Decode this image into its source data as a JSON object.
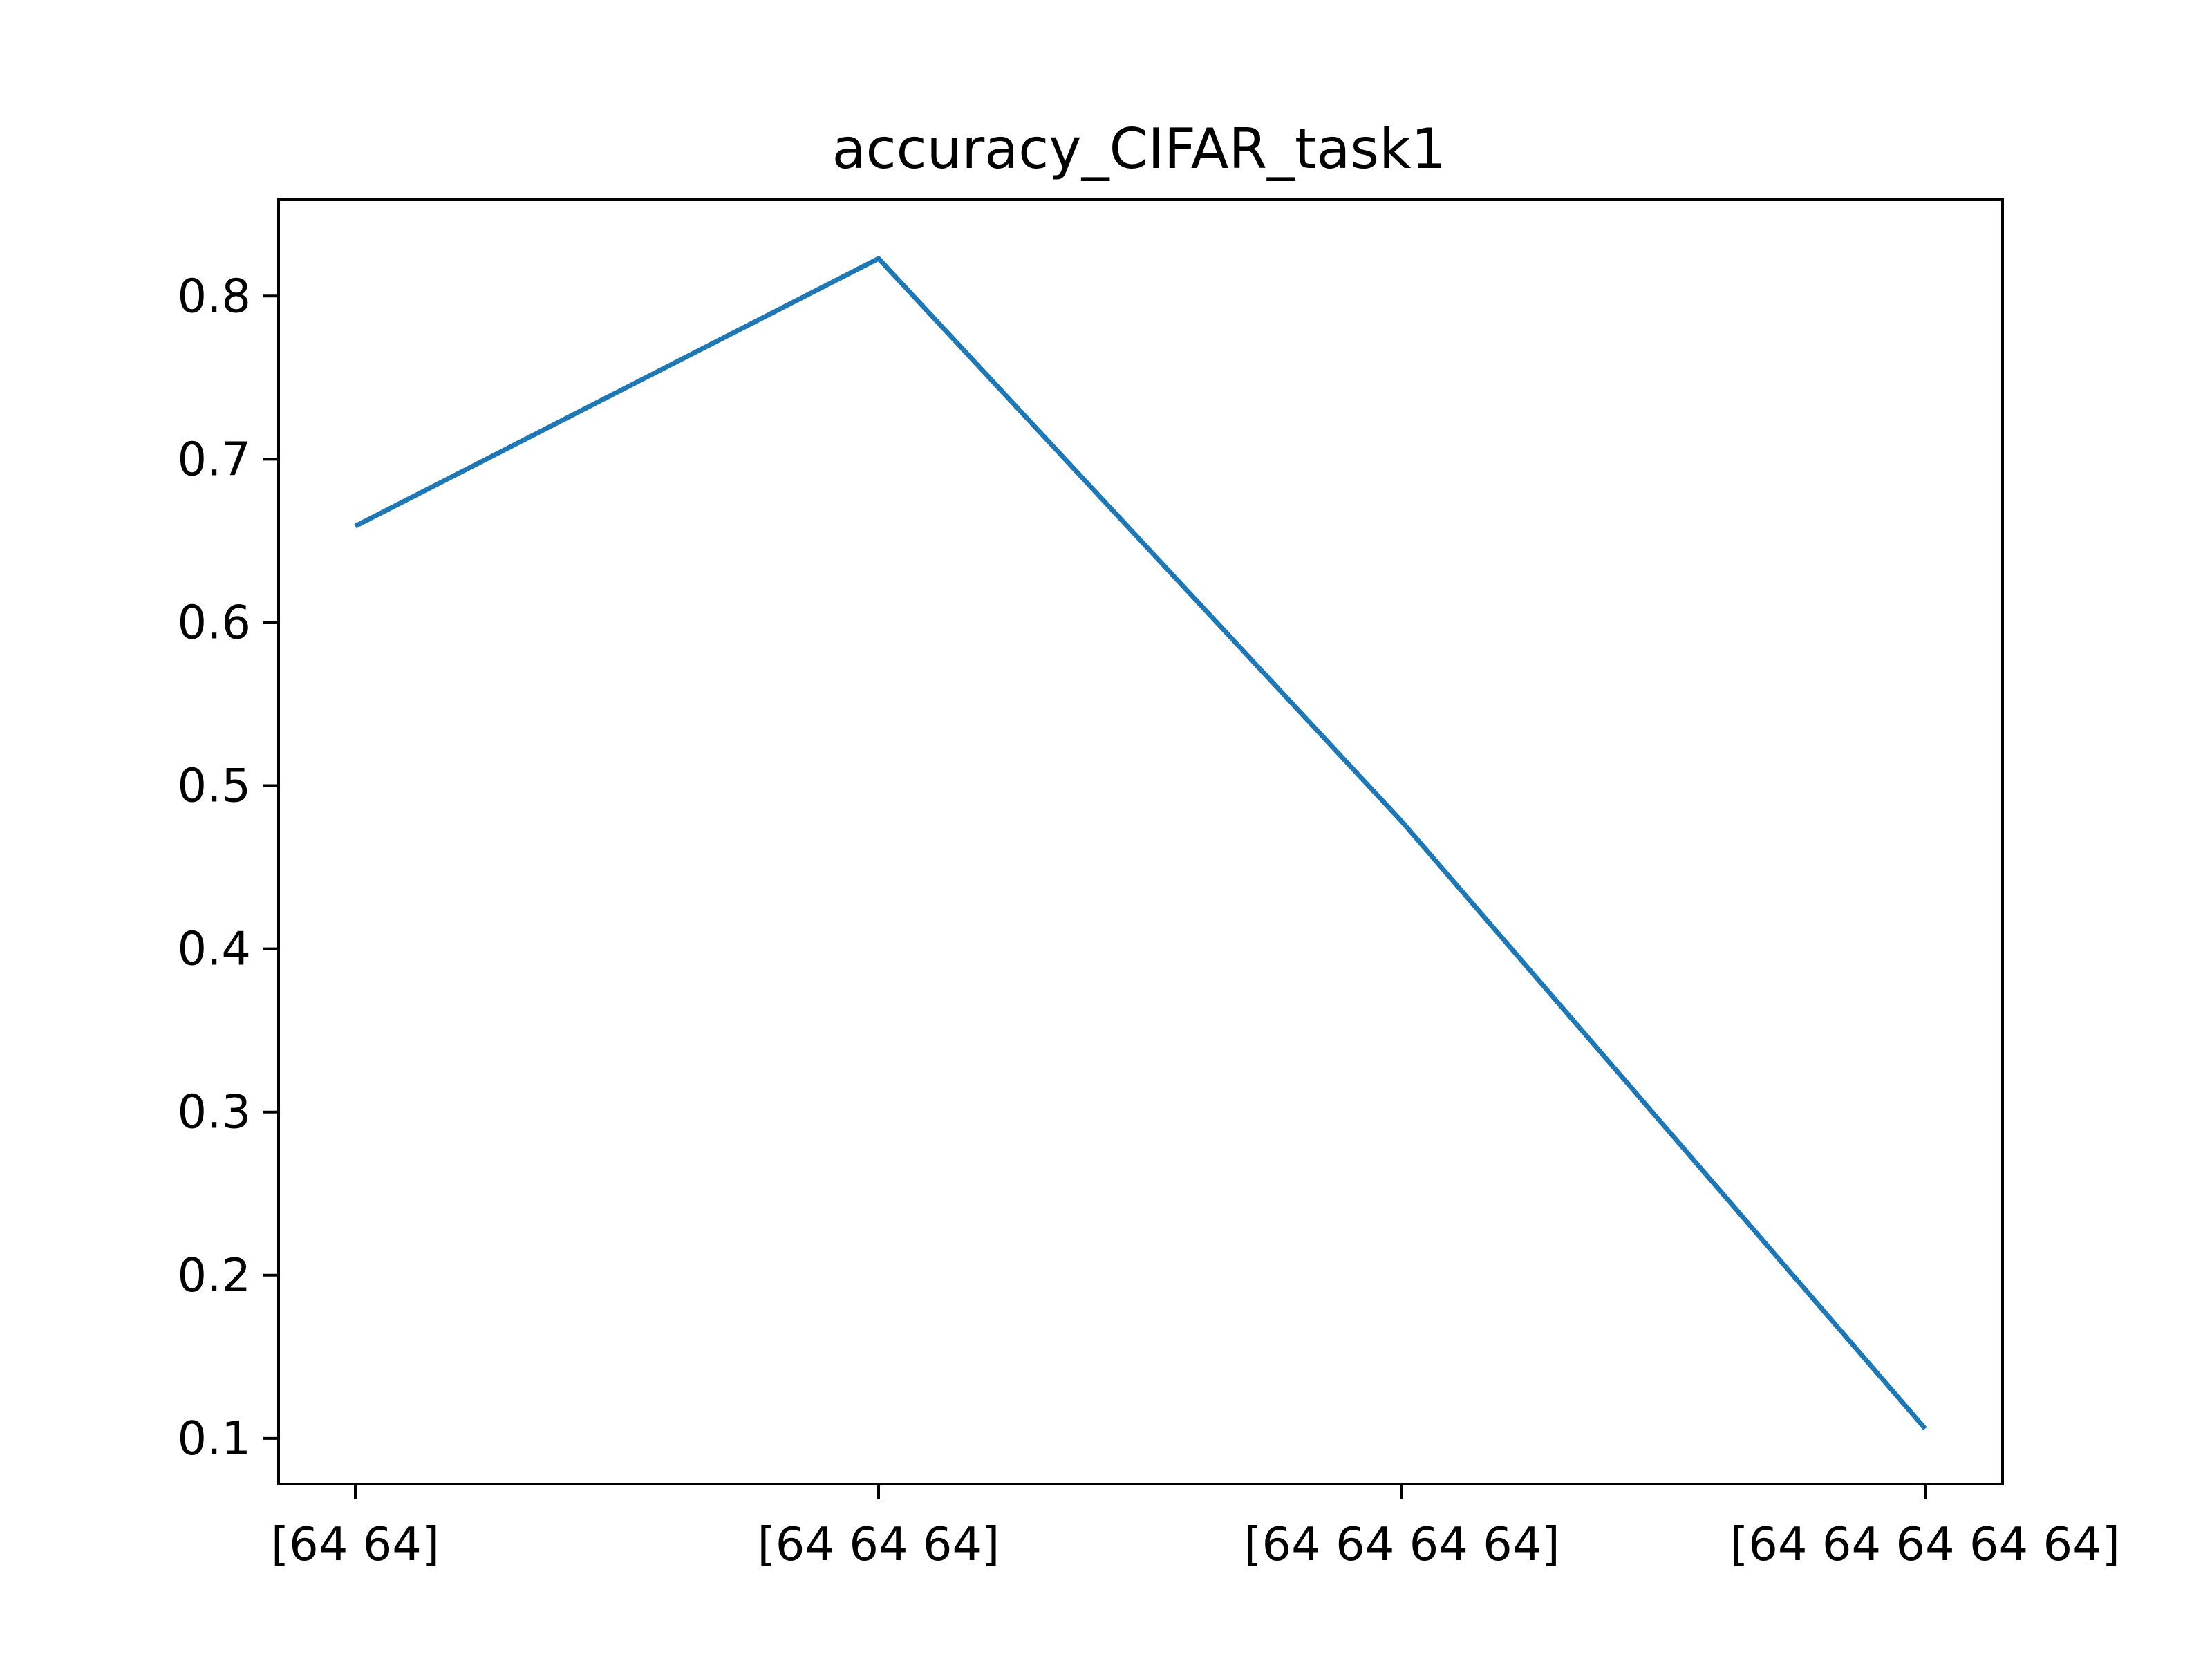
{
  "chart_data": {
    "type": "line",
    "title": "accuracy_CIFAR_task1",
    "xlabel": "",
    "ylabel": "",
    "categories": [
      "[64 64]",
      "[64 64 64]",
      "[64 64 64 64]",
      "[64 64 64 64 64]"
    ],
    "series": [
      {
        "values": [
          0.659,
          0.823,
          0.478,
          0.106
        ],
        "color": "#1f77b4"
      }
    ],
    "ylim": [
      0.072,
      0.859
    ],
    "yticks": [
      "0.1",
      "0.2",
      "0.3",
      "0.4",
      "0.5",
      "0.6",
      "0.7",
      "0.8"
    ],
    "grid": false,
    "legend": "none"
  }
}
